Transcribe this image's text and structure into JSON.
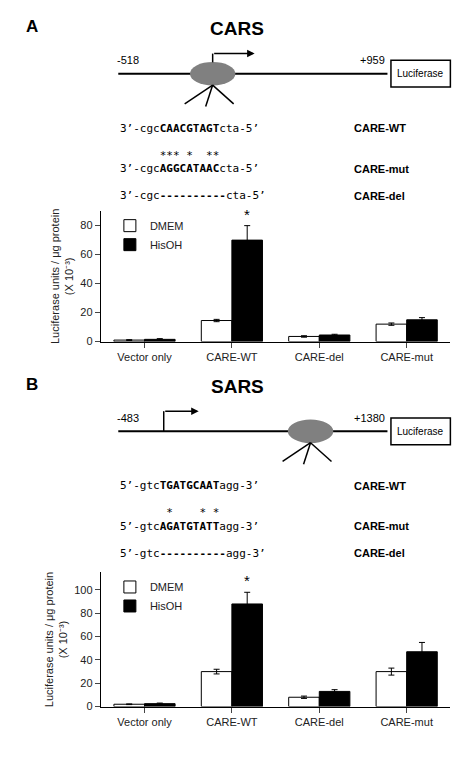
{
  "chart_data": [
    {
      "type": "bar",
      "title": "CARS",
      "annotations": [
        {
          "text": "A"
        },
        {
          "text": "-518"
        },
        {
          "text": "+959"
        },
        {
          "text": "Luciferase"
        },
        {
          "text": "3’-cgc"
        },
        {
          "text": "CAACGTAGT"
        },
        {
          "text": "cta-5’"
        },
        {
          "text": "CARE-WT"
        },
        {
          "text": "*** *  **"
        },
        {
          "text": "3’-cgc"
        },
        {
          "text": "AGGCATAAC"
        },
        {
          "text": "cta-5’"
        },
        {
          "text": "CARE-mut"
        },
        {
          "text": "3’-cgc"
        },
        {
          "text": "----------"
        },
        {
          "text": "cta-5’"
        },
        {
          "text": "CARE-del"
        },
        {
          "text": "*",
          "category": "CARE-WT",
          "series": "HisOH"
        }
      ],
      "categories": [
        "Vector only",
        "CARE-WT",
        "CARE-del",
        "CARE-mut"
      ],
      "series": [
        {
          "name": "DMEM",
          "color": "white",
          "values": [
            1.0,
            14.5,
            3.5,
            12.0
          ],
          "errors": [
            0.3,
            0.8,
            0.5,
            0.8
          ]
        },
        {
          "name": "HisOH",
          "color": "black",
          "values": [
            1.5,
            70.0,
            4.5,
            15.0
          ],
          "errors": [
            0.5,
            10.0,
            0.5,
            1.5
          ]
        }
      ],
      "ylabel": "Luciferase units / μg protein\n(X 10⁻³)",
      "ylim": [
        0,
        90
      ],
      "yticks": [
        0,
        20,
        40,
        60,
        80
      ],
      "grid": false,
      "legend": "upper left"
    },
    {
      "type": "bar",
      "title": "SARS",
      "annotations": [
        {
          "text": "B"
        },
        {
          "text": "-483"
        },
        {
          "text": "+1380"
        },
        {
          "text": "Luciferase"
        },
        {
          "text": "5’-gtc"
        },
        {
          "text": "TGATGCAAT"
        },
        {
          "text": "agg-3’"
        },
        {
          "text": "CARE-WT"
        },
        {
          "text": " *    * *"
        },
        {
          "text": "5’-gtc"
        },
        {
          "text": "AGATGTATT"
        },
        {
          "text": "agg-3’"
        },
        {
          "text": "CARE-mut"
        },
        {
          "text": "5’-gtc"
        },
        {
          "text": "----------"
        },
        {
          "text": "agg-3’"
        },
        {
          "text": "CARE-del"
        },
        {
          "text": "*",
          "category": "CARE-WT",
          "series": "HisOH"
        }
      ],
      "categories": [
        "Vector only",
        "CARE-WT",
        "CARE-del",
        "CARE-mut"
      ],
      "series": [
        {
          "name": "DMEM",
          "color": "white",
          "values": [
            2.0,
            30.0,
            8.0,
            30.0
          ],
          "errors": [
            0.3,
            2.0,
            1.0,
            3.0
          ]
        },
        {
          "name": "HisOH",
          "color": "black",
          "values": [
            2.5,
            88.0,
            13.0,
            47.0
          ],
          "errors": [
            0.5,
            10.0,
            1.5,
            8.0
          ]
        }
      ],
      "ylabel": "Luciferase units / μg protein\n(X 10⁻³)",
      "ylim": [
        0,
        115
      ],
      "yticks": [
        0,
        20,
        40,
        60,
        80,
        100
      ],
      "grid": false,
      "legend": "upper left"
    }
  ]
}
